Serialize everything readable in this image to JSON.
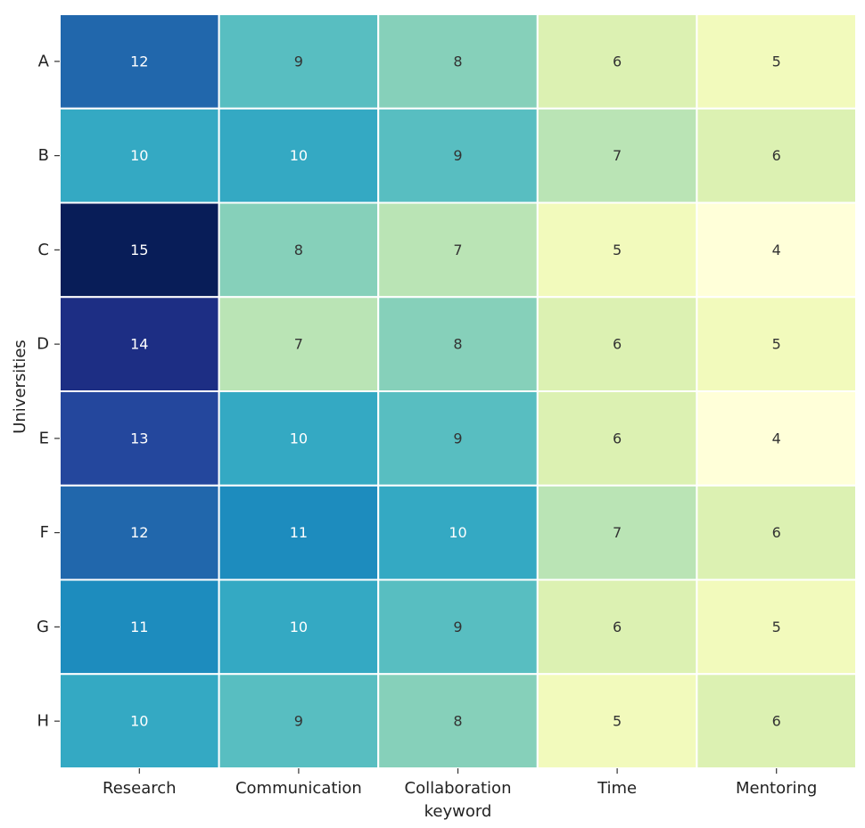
{
  "chart_data": {
    "type": "heatmap",
    "title": "",
    "xlabel": "",
    "ylabel": "Universities",
    "x_categories": [
      "Research",
      "Communication",
      "Collaboration keyword",
      "Time",
      "Mentoring"
    ],
    "x_category_lines": [
      [
        "Research"
      ],
      [
        "Communication"
      ],
      [
        "Collaboration",
        "keyword"
      ],
      [
        "Time"
      ],
      [
        "Mentoring"
      ]
    ],
    "y_categories": [
      "A",
      "B",
      "C",
      "D",
      "E",
      "F",
      "G",
      "H"
    ],
    "values": [
      [
        12,
        9,
        8,
        6,
        5
      ],
      [
        10,
        10,
        9,
        7,
        6
      ],
      [
        15,
        8,
        7,
        5,
        4
      ],
      [
        14,
        7,
        8,
        6,
        5
      ],
      [
        13,
        10,
        9,
        6,
        4
      ],
      [
        12,
        11,
        10,
        7,
        6
      ],
      [
        11,
        10,
        9,
        6,
        5
      ],
      [
        10,
        9,
        8,
        5,
        6
      ]
    ],
    "colormap": "YlGnBu",
    "value_range": [
      4,
      15
    ],
    "annotations": true,
    "colorbar": false,
    "grid": false
  }
}
